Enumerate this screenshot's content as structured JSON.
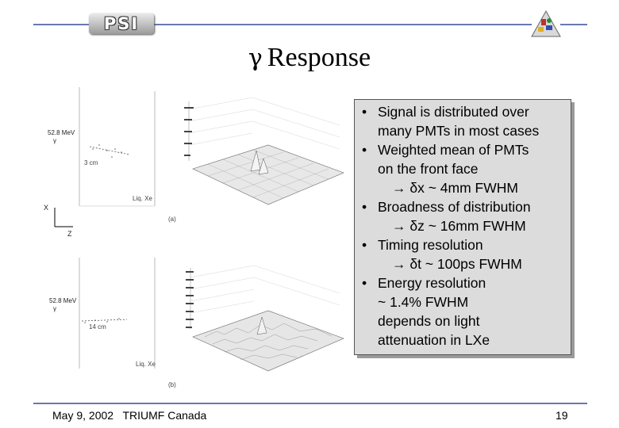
{
  "header": {
    "logo": "PSI"
  },
  "title": {
    "symbol": "γ",
    "text": "Response"
  },
  "bullets": [
    {
      "lines": [
        "Signal is distributed over",
        "many PMTs in most cases"
      ],
      "result": ""
    },
    {
      "lines": [
        "Weighted mean of PMTs",
        "on the front face"
      ],
      "result": "→ δx ~ 4mm FWHM"
    },
    {
      "lines": [
        "Broadness of distribution"
      ],
      "result": "→ δz ~ 16mm FWHM"
    },
    {
      "lines": [
        "Timing resolution"
      ],
      "result": "→ δt ~ 100ps FWHM"
    },
    {
      "lines": [
        "Energy resolution",
        "~ 1.4% FWHM",
        "depends on light",
        "attenuation in LXe"
      ],
      "result": ""
    }
  ],
  "figure": {
    "top": {
      "energy": "52.8 MeV",
      "gamma": "γ",
      "dist": "3 cm",
      "medium": "Liq. Xe",
      "tag": "(a)"
    },
    "axes": {
      "x": "X",
      "z": "Z"
    },
    "bottom": {
      "energy": "52.8 MeV",
      "gamma": "γ",
      "dist": "14 cm",
      "medium": "Liq. Xe",
      "tag": "(b)"
    }
  },
  "footer": {
    "date_location": "May 9, 2002   TRIUMF Canada",
    "page": "19"
  }
}
